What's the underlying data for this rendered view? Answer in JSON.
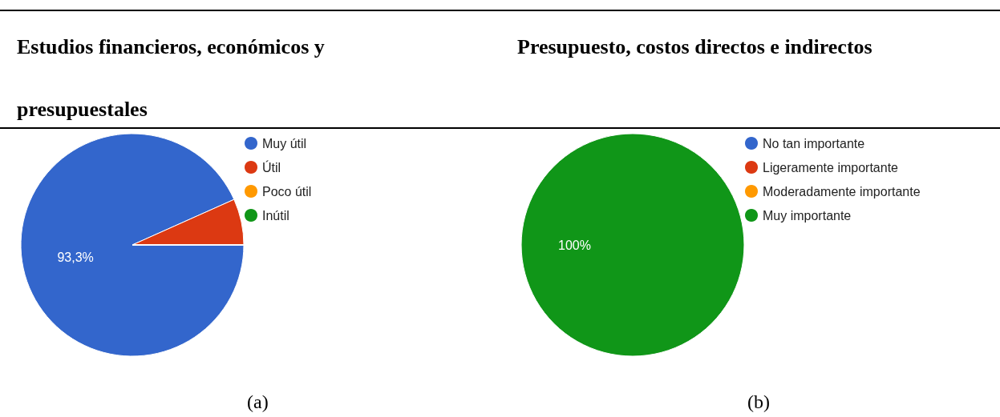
{
  "chart_data": [
    {
      "type": "pie",
      "title": "Estudios financieros, económicos y presupuestales",
      "categories": [
        "Muy útil",
        "Útil",
        "Poco útil",
        "Inútil"
      ],
      "values": [
        93.3,
        6.7,
        0,
        0
      ],
      "colors": [
        "#3366cc",
        "#dc3912",
        "#ff9900",
        "#109618"
      ],
      "value_labels": [
        "93,3%",
        null,
        null,
        null
      ],
      "legend": "right",
      "annotations": [
        "(a)"
      ]
    },
    {
      "type": "pie",
      "title": "Presupuesto, costos directos e indirectos",
      "categories": [
        "No tan importante",
        "Ligeramente importante",
        "Moderadamente importante",
        "Muy importante"
      ],
      "values": [
        0,
        0,
        0,
        100
      ],
      "colors": [
        "#3366cc",
        "#dc3912",
        "#ff9900",
        "#109618"
      ],
      "value_labels": [
        null,
        null,
        null,
        "100%"
      ],
      "legend": "right",
      "annotations": [
        "(b)"
      ]
    }
  ]
}
